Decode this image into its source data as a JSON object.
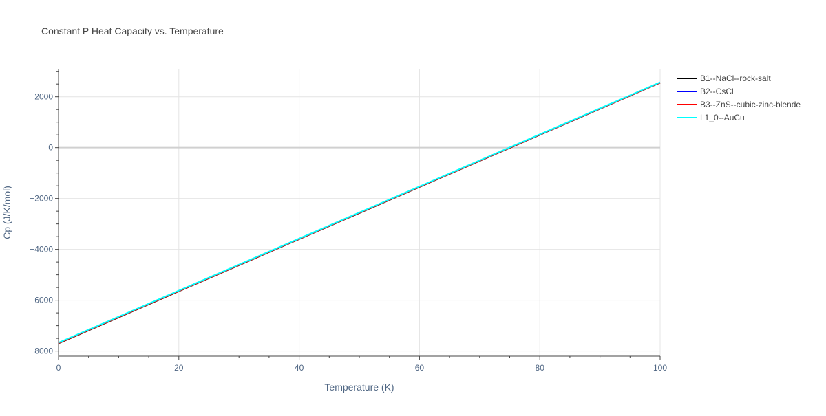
{
  "chart_data": {
    "type": "line",
    "title": "Constant P Heat Capacity vs. Temperature",
    "xlabel": "Temperature (K)",
    "ylabel": "Cp (J/K/mol)",
    "xlim": [
      0,
      100
    ],
    "ylim": [
      -8200,
      3100
    ],
    "x_ticks": [
      0,
      20,
      40,
      60,
      80,
      100
    ],
    "y_ticks": [
      -8000,
      -6000,
      -4000,
      -2000,
      0,
      2000
    ],
    "x_tick_labels": [
      "0",
      "20",
      "40",
      "60",
      "80",
      "100"
    ],
    "y_tick_labels": [
      "−8000",
      "−6000",
      "−4000",
      "−2000",
      "0",
      "2000"
    ],
    "grid": true,
    "legend_position": "top-right, outside plot",
    "series": [
      {
        "name": "B1--NaCl--rock-salt",
        "color": "#000000",
        "x": [
          0,
          100
        ],
        "y": [
          -7700,
          2550
        ]
      },
      {
        "name": "B2--CsCl",
        "color": "#0000ff",
        "x": [
          0,
          100
        ],
        "y": [
          -7680,
          2560
        ]
      },
      {
        "name": "B3--ZnS--cubic-zinc-blende",
        "color": "#ff0000",
        "x": [
          0,
          100
        ],
        "y": [
          -7690,
          2555
        ]
      },
      {
        "name": "L1_0--AuCu",
        "color": "#00ffff",
        "x": [
          0,
          100
        ],
        "y": [
          -7670,
          2570
        ]
      }
    ]
  }
}
